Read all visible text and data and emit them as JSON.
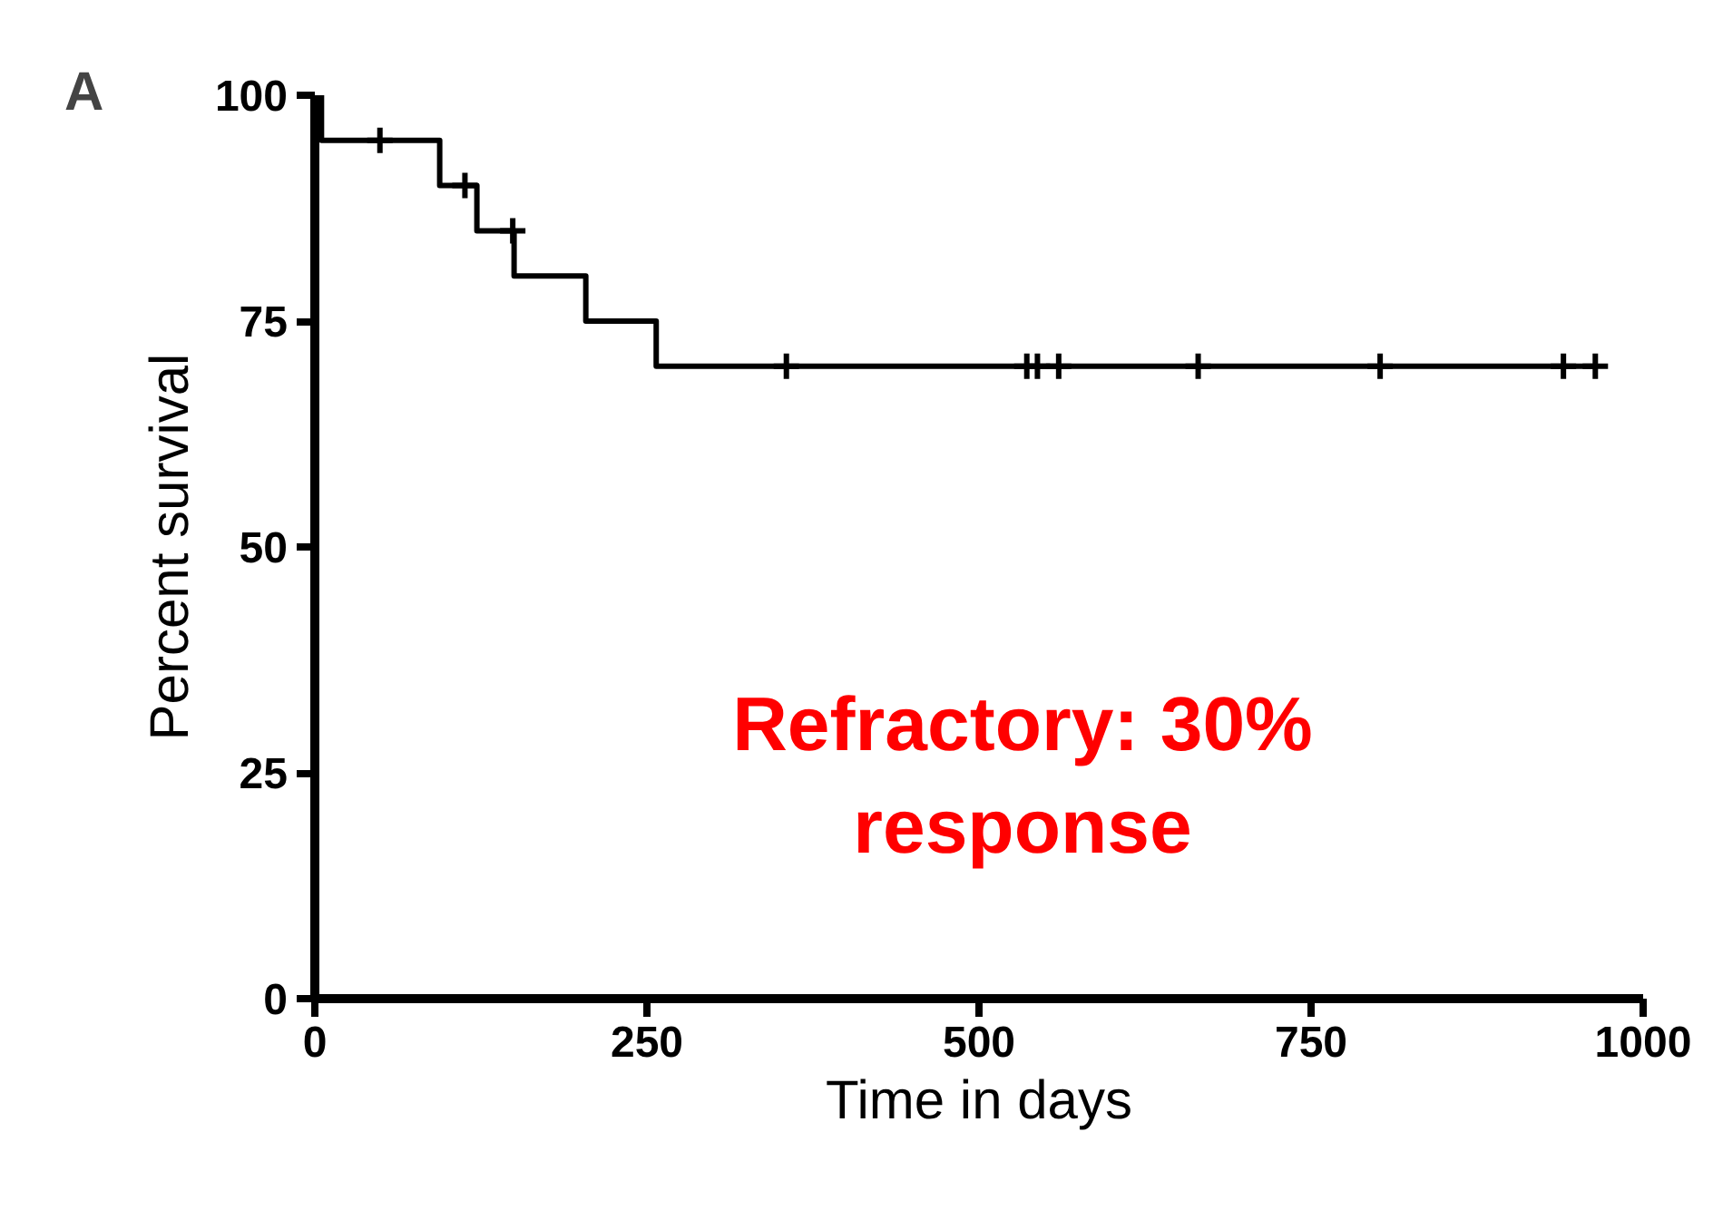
{
  "chart_data": {
    "type": "step",
    "xlabel": "Time in days",
    "ylabel": "Percent survival",
    "annotations": [
      "A",
      "Refractory: 30%\nresponse"
    ],
    "series": [
      {
        "color": "#000000",
        "x": [
          0,
          5,
          94,
          122,
          150,
          204,
          257,
          964
        ],
        "values": [
          100,
          95,
          90,
          85,
          80,
          75,
          70,
          70
        ]
      },
      {
        "type": "scatter",
        "marker": "cross",
        "color": "#000000",
        "x": [
          49,
          113,
          149,
          355,
          536,
          544,
          560,
          665,
          802,
          940,
          964
        ],
        "values": [
          95,
          90,
          85,
          70,
          70,
          70,
          70,
          70,
          70,
          70,
          70
        ]
      }
    ],
    "xlim": [
      0,
      1000
    ],
    "ylim": [
      0,
      100
    ],
    "xticks": [
      0,
      250,
      500,
      750,
      1000
    ],
    "yticks": [
      0,
      25,
      50,
      75,
      100
    ],
    "grid": false
  }
}
